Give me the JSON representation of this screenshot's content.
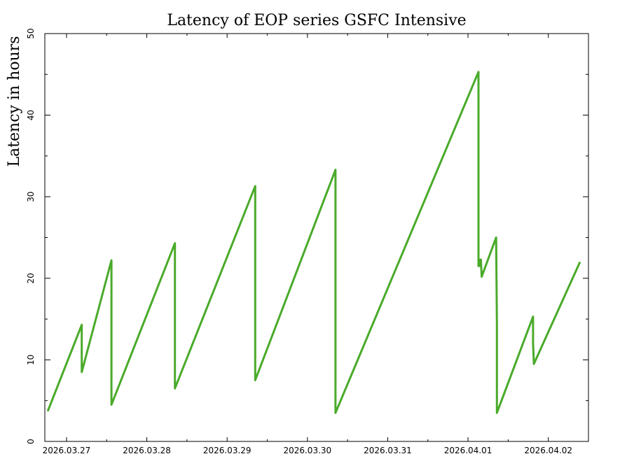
{
  "chart_data": {
    "type": "line",
    "title": "Latency of EOP  series GSFC Intensive",
    "xlabel": "",
    "ylabel": "Latency in hours",
    "xlim": [
      -0.27,
      6.5
    ],
    "ylim": [
      0,
      50
    ],
    "x_ticks": [
      {
        "value": 0,
        "label": "2026.03.27"
      },
      {
        "value": 1,
        "label": "2026.03.28"
      },
      {
        "value": 2,
        "label": "2026.03.29"
      },
      {
        "value": 3,
        "label": "2026.03.30"
      },
      {
        "value": 4,
        "label": "2026.03.31"
      },
      {
        "value": 5,
        "label": "2026.04.01"
      },
      {
        "value": 6,
        "label": "2026.04.02"
      }
    ],
    "y_ticks": [
      {
        "value": 0,
        "label": "0"
      },
      {
        "value": 10,
        "label": "10"
      },
      {
        "value": 20,
        "label": "20"
      },
      {
        "value": 30,
        "label": "30"
      },
      {
        "value": 40,
        "label": "40"
      },
      {
        "value": 50,
        "label": "50"
      }
    ],
    "y_minor_ticks": [
      5,
      15,
      25,
      35,
      45
    ],
    "grid": false,
    "series_color": "#4aaa2a",
    "series": [
      {
        "x": [
          -0.23,
          0.19,
          0.19,
          0.19,
          0.56,
          0.56,
          0.56,
          1.35,
          1.35,
          1.35,
          2.35,
          2.35,
          2.35,
          3.35,
          3.35,
          5.13,
          5.13,
          5.14,
          5.15,
          5.16,
          5.17,
          5.35,
          5.36,
          5.36,
          5.81,
          5.81,
          5.82,
          6.39
        ],
        "y": [
          3.8,
          14.3,
          12.0,
          8.5,
          22.2,
          13.5,
          4.5,
          24.3,
          15.0,
          6.5,
          31.3,
          19.5,
          7.5,
          33.3,
          3.5,
          45.3,
          21.5,
          22.3,
          21.5,
          22.3,
          20.2,
          25.0,
          14.5,
          3.5,
          15.3,
          12.0,
          9.5,
          21.9
        ]
      }
    ]
  }
}
